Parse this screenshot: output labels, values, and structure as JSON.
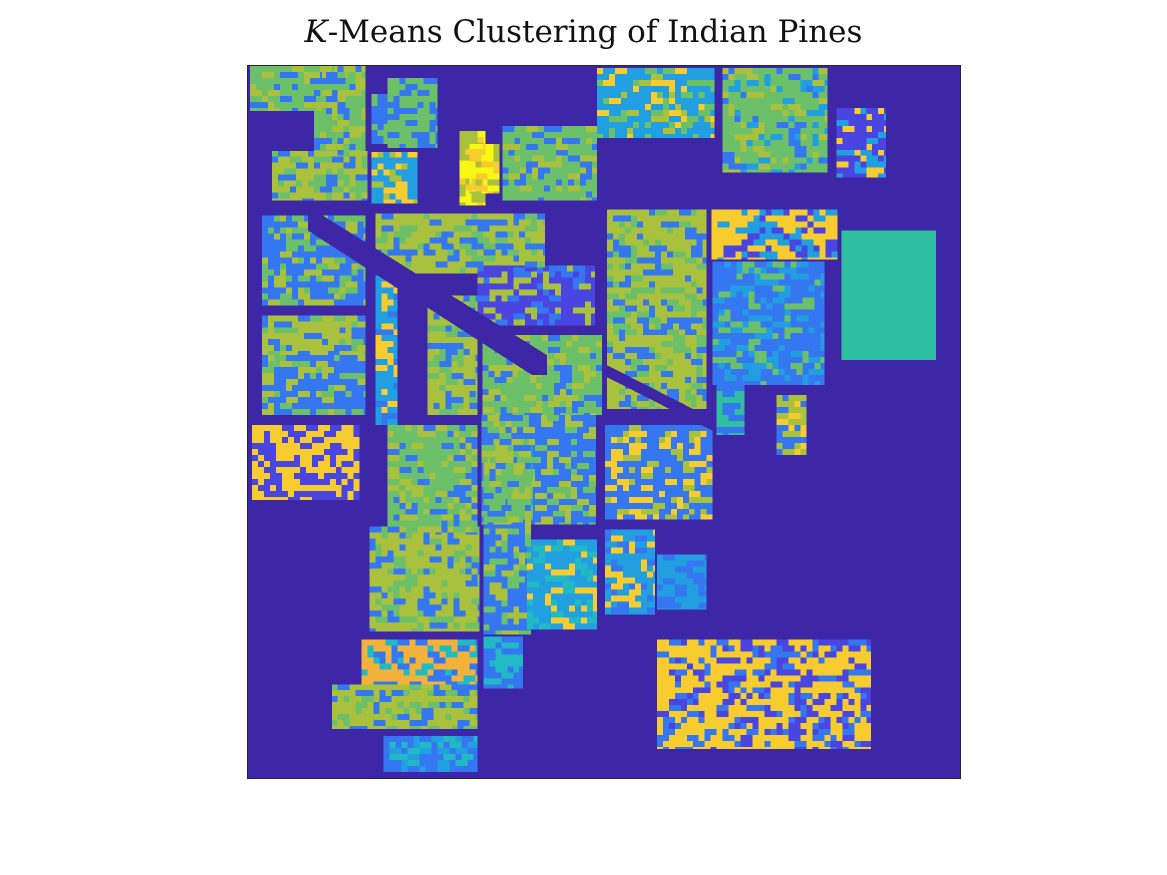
{
  "figure": {
    "title_var": "K",
    "title_rest": "-Means Clustering of Indian Pines"
  },
  "colors": {
    "background": "#3d27a6",
    "cluster_blue": "#3577f0",
    "cluster_lightblue": "#229fe0",
    "cluster_cyan": "#20b9c4",
    "cluster_teal": "#2dbf9f",
    "cluster_green": "#6cc06a",
    "cluster_olive": "#aac13d",
    "cluster_yellow": "#f7cc2e",
    "cluster_bright_yellow": "#f8f814",
    "cluster_orange": "#f3b33b",
    "cluster_violet": "#4a44e0"
  }
}
